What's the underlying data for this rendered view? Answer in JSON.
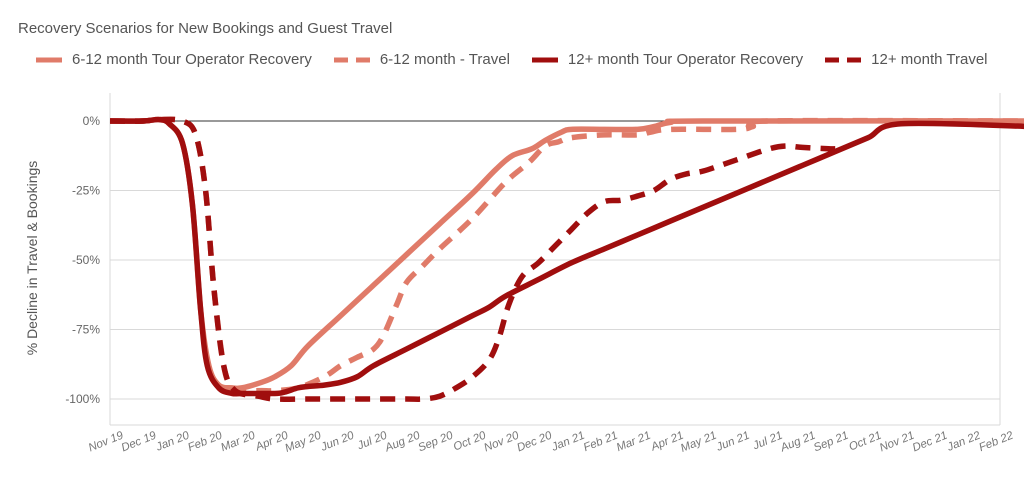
{
  "chart_data": {
    "type": "line",
    "title": "Recovery Scenarios for New Bookings and Guest Travel",
    "ylabel": "% Decline in Travel & Bookings",
    "xlabel": "",
    "ylim": [
      -110,
      10
    ],
    "yticks": [
      0,
      -25,
      -50,
      -75,
      -100
    ],
    "ytick_labels": [
      "0%",
      "-25%",
      "-50%",
      "-75%",
      "-100%"
    ],
    "grid": true,
    "legend_position": "top",
    "categories": [
      "Nov 19",
      "Dec 19",
      "Jan 20",
      "Feb 20",
      "Mar 20",
      "Apr 20",
      "May 20",
      "Jun 20",
      "Jul 20",
      "Aug 20",
      "Sep 20",
      "Oct 20",
      "Nov 20",
      "Dec 20",
      "Jan 21",
      "Feb 21",
      "Mar 21",
      "Apr 21",
      "May 21",
      "Jun 21",
      "Jul 21",
      "Aug 21",
      "Sep 21",
      "Oct 21",
      "Nov 21",
      "Dec 21",
      "Jan 22",
      "Feb 22"
    ],
    "series": [
      {
        "name": "6-12 month Tour Operator Recovery",
        "color": "#e07b69",
        "dash": false,
        "points": [
          [
            0,
            0
          ],
          [
            1,
            0
          ],
          [
            1.5,
            0.5
          ],
          [
            1.8,
            -1
          ],
          [
            2.2,
            -8
          ],
          [
            2.5,
            -30
          ],
          [
            2.75,
            -68
          ],
          [
            3,
            -88
          ],
          [
            3.3,
            -95
          ],
          [
            3.7,
            -96
          ],
          [
            4,
            -96
          ],
          [
            4.6,
            -94
          ],
          [
            5,
            -92
          ],
          [
            5.5,
            -88
          ],
          [
            6,
            -81
          ],
          [
            7,
            -70
          ],
          [
            8,
            -59
          ],
          [
            9,
            -48
          ],
          [
            10,
            -37
          ],
          [
            11,
            -26
          ],
          [
            11.7,
            -17.5
          ],
          [
            12.2,
            -12.5
          ],
          [
            12.8,
            -10
          ],
          [
            13.2,
            -7
          ],
          [
            13.7,
            -4
          ],
          [
            14,
            -3
          ],
          [
            15,
            -3
          ],
          [
            16,
            -3
          ],
          [
            16.5,
            -2
          ],
          [
            17,
            -0.5
          ],
          [
            18,
            0
          ],
          [
            28,
            0
          ]
        ]
      },
      {
        "name": "6-12 month - Travel",
        "color": "#e07b69",
        "dash": true,
        "points": [
          [
            0,
            0
          ],
          [
            1,
            0
          ],
          [
            1.5,
            0.5
          ],
          [
            2.2,
            0
          ],
          [
            2.6,
            -5
          ],
          [
            2.9,
            -25
          ],
          [
            3.15,
            -60
          ],
          [
            3.45,
            -88
          ],
          [
            3.7,
            -96
          ],
          [
            4,
            -97
          ],
          [
            4.6,
            -97
          ],
          [
            5,
            -97
          ],
          [
            5.7,
            -96
          ],
          [
            6.5,
            -92
          ],
          [
            7,
            -88
          ],
          [
            7.5,
            -85
          ],
          [
            8,
            -82
          ],
          [
            8.3,
            -77
          ],
          [
            8.7,
            -66
          ],
          [
            9,
            -58
          ],
          [
            9.5,
            -52
          ],
          [
            10,
            -46
          ],
          [
            11,
            -35
          ],
          [
            12,
            -22
          ],
          [
            12.7,
            -15
          ],
          [
            13.2,
            -9
          ],
          [
            13.6,
            -7.5
          ],
          [
            14,
            -6
          ],
          [
            15,
            -5
          ],
          [
            16,
            -5
          ],
          [
            16.4,
            -4
          ],
          [
            17,
            -3
          ],
          [
            19,
            -3
          ],
          [
            19.5,
            -2
          ],
          [
            20,
            0
          ],
          [
            28,
            0
          ]
        ]
      },
      {
        "name": "12+ month Tour Operator Recovery",
        "color": "#a00e0e",
        "dash": false,
        "points": [
          [
            0,
            0
          ],
          [
            1,
            0
          ],
          [
            1.5,
            0.5
          ],
          [
            1.8,
            -1
          ],
          [
            2.2,
            -8
          ],
          [
            2.5,
            -30
          ],
          [
            2.75,
            -68
          ],
          [
            2.95,
            -88
          ],
          [
            3.3,
            -96
          ],
          [
            3.7,
            -98
          ],
          [
            4,
            -98
          ],
          [
            5,
            -98
          ],
          [
            5.3,
            -97.5
          ],
          [
            5.7,
            -96
          ],
          [
            6,
            -95.5
          ],
          [
            6.5,
            -95
          ],
          [
            7,
            -94
          ],
          [
            7.5,
            -92
          ],
          [
            8,
            -88
          ],
          [
            9,
            -82
          ],
          [
            10,
            -76
          ],
          [
            11,
            -70
          ],
          [
            11.5,
            -67
          ],
          [
            12,
            -63
          ],
          [
            13,
            -57
          ],
          [
            14,
            -51
          ],
          [
            15,
            -46
          ],
          [
            16,
            -41
          ],
          [
            17,
            -36
          ],
          [
            18,
            -31
          ],
          [
            19,
            -26
          ],
          [
            20,
            -21
          ],
          [
            21,
            -16
          ],
          [
            22,
            -11
          ],
          [
            23,
            -6
          ],
          [
            24,
            -1
          ],
          [
            27.95,
            -2
          ]
        ]
      },
      {
        "name": "12+ month Travel",
        "color": "#a00e0e",
        "dash": true,
        "points": [
          [
            0,
            0
          ],
          [
            1,
            0
          ],
          [
            1.5,
            0.5
          ],
          [
            2.2,
            0
          ],
          [
            2.6,
            -5
          ],
          [
            2.9,
            -25
          ],
          [
            3.15,
            -60
          ],
          [
            3.45,
            -88
          ],
          [
            3.8,
            -97
          ],
          [
            4.5,
            -99
          ],
          [
            5,
            -100
          ],
          [
            6,
            -100
          ],
          [
            7,
            -100
          ],
          [
            8,
            -100
          ],
          [
            9,
            -100
          ],
          [
            9.5,
            -100
          ],
          [
            10,
            -99
          ],
          [
            10.5,
            -96
          ],
          [
            11,
            -92
          ],
          [
            11.5,
            -86
          ],
          [
            11.8,
            -78
          ],
          [
            12.1,
            -66
          ],
          [
            12.5,
            -56
          ],
          [
            13,
            -51
          ],
          [
            13.5,
            -45
          ],
          [
            14,
            -39
          ],
          [
            14.5,
            -33
          ],
          [
            15,
            -29
          ],
          [
            15.5,
            -28.5
          ],
          [
            16,
            -27
          ],
          [
            16.5,
            -25
          ],
          [
            17,
            -21
          ],
          [
            17.5,
            -19
          ],
          [
            18,
            -18
          ],
          [
            19,
            -14
          ],
          [
            20,
            -10
          ],
          [
            20.5,
            -9
          ],
          [
            21,
            -9.5
          ],
          [
            21.8,
            -10
          ],
          [
            22,
            -10
          ]
        ]
      }
    ]
  }
}
